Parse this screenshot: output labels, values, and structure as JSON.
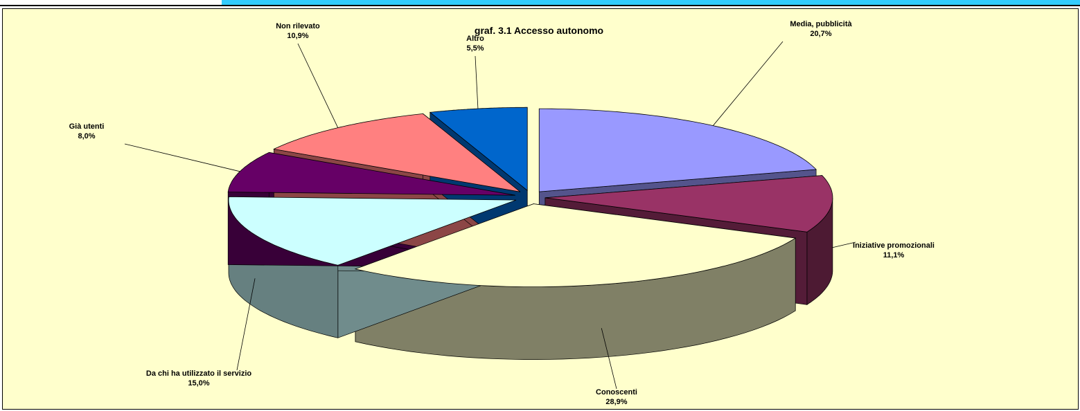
{
  "chart_data": {
    "type": "pie3d",
    "title": "graf. 3.1 Accesso   autonomo",
    "categories": [
      "Media, pubblicità",
      "Iniziative promozionali",
      "Conoscenti",
      "Da chi ha utilizzato il servizio",
      "Già utenti",
      "Non rilevato",
      "Altro"
    ],
    "values": [
      20.7,
      11.1,
      28.9,
      15.0,
      8.0,
      10.9,
      5.5
    ],
    "value_labels": [
      "20,7%",
      "11,1%",
      "28,9%",
      "15,0%",
      "8,0%",
      "10,9%",
      "5,5%"
    ],
    "colors": [
      "#9999ff",
      "#993366",
      "#ffffcc",
      "#ccffff",
      "#660066",
      "#ff8080",
      "#0066cc"
    ]
  }
}
